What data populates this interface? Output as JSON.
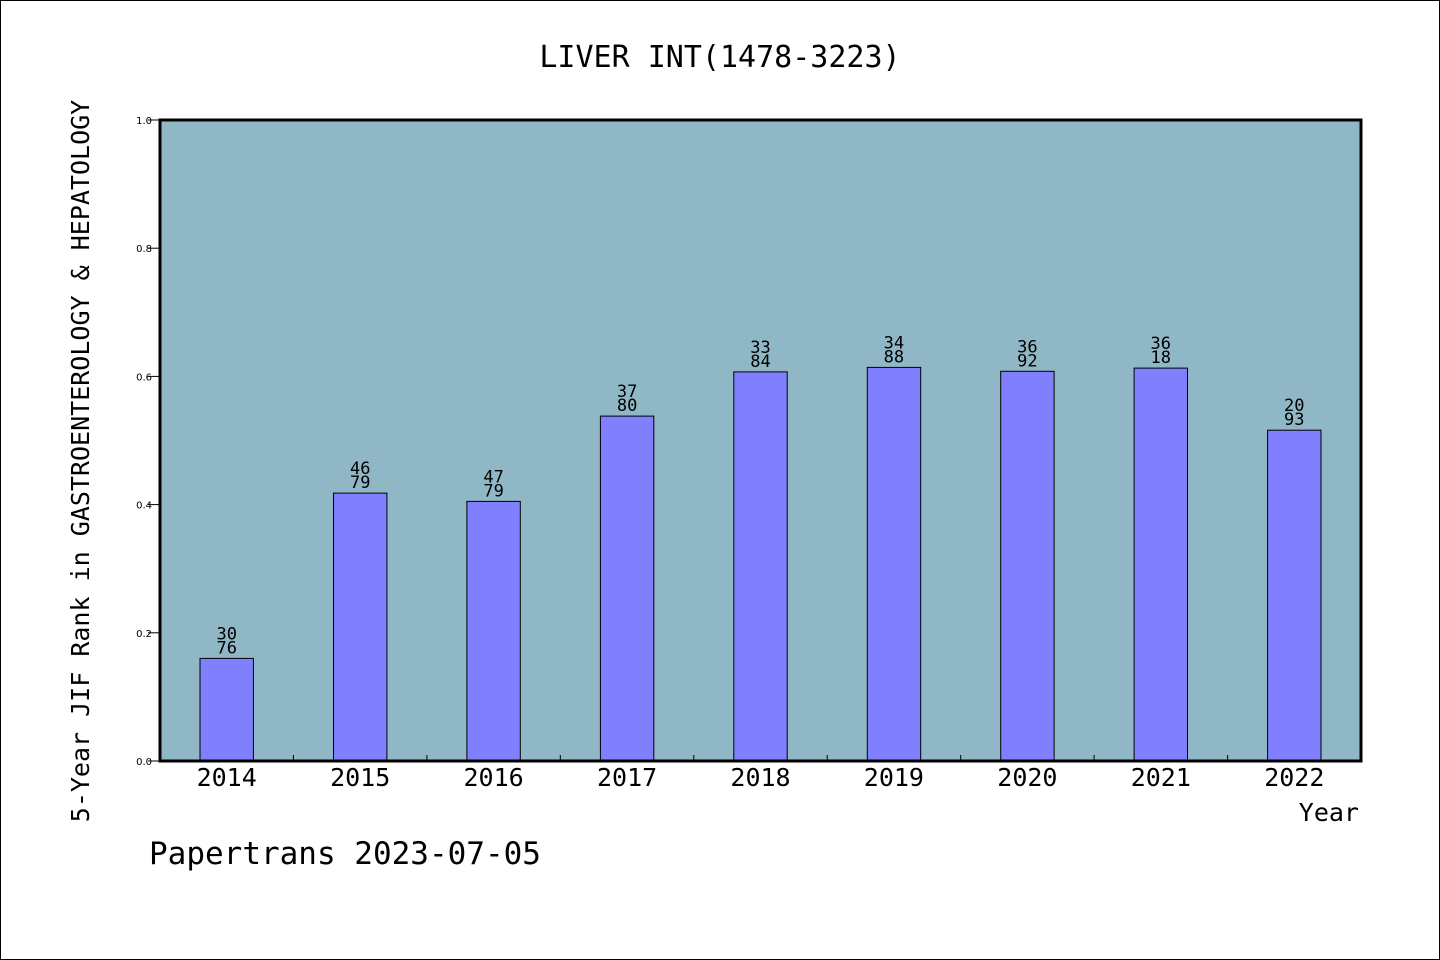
{
  "chart_data": {
    "type": "bar",
    "title": "LIVER INT(1478-3223)",
    "xlabel": "Year",
    "ylabel": "5-Year JIF Rank in GASTROENTEROLOGY & HEPATOLOGY",
    "categories": [
      "2014",
      "2015",
      "2016",
      "2017",
      "2018",
      "2019",
      "2020",
      "2021",
      "2022"
    ],
    "values": [
      0.16,
      0.418,
      0.405,
      0.538,
      0.607,
      0.614,
      0.608,
      0.613,
      0.516
    ],
    "labels": [
      [
        "30",
        "76"
      ],
      [
        "46",
        "79"
      ],
      [
        "47",
        "79"
      ],
      [
        "37",
        "80"
      ],
      [
        "33",
        "84"
      ],
      [
        "34",
        "88"
      ],
      [
        "36",
        "92"
      ],
      [
        "36",
        "18"
      ],
      [
        "20",
        "93"
      ]
    ],
    "ylim": [
      0.0,
      1.0
    ],
    "yticks": [
      "0.0",
      "0.2",
      "0.4",
      "0.6",
      "0.8",
      "1.0"
    ],
    "grid": false,
    "colors": {
      "plot_background": "#8fb7c5",
      "bar_fill": "#8080ff",
      "bar_stroke": "#000000",
      "axis": "#000000",
      "text": "#000000"
    }
  },
  "footer": {
    "watermark": "Papertrans 2023-07-05"
  }
}
